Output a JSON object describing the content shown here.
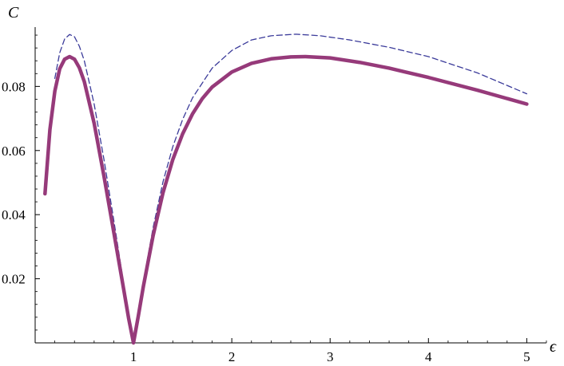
{
  "chart_data": {
    "type": "line",
    "title": "",
    "xlabel": "ϵ",
    "ylabel": "C",
    "xlim": [
      0,
      5.2
    ],
    "ylim": [
      0,
      0.0985
    ],
    "grid": false,
    "legend": "none",
    "x_ticks": [
      {
        "value": 1,
        "label": "1"
      },
      {
        "value": 2,
        "label": "2"
      },
      {
        "value": 3,
        "label": "3"
      },
      {
        "value": 4,
        "label": "4"
      },
      {
        "value": 5,
        "label": "5"
      }
    ],
    "y_ticks": [
      {
        "value": 0.02,
        "label": "0.02"
      },
      {
        "value": 0.04,
        "label": "0.04"
      },
      {
        "value": 0.06,
        "label": "0.06"
      },
      {
        "value": 0.08,
        "label": "0.08"
      }
    ],
    "series": [
      {
        "style": "solid",
        "color": "#963a7a",
        "x": [
          0.1,
          0.15,
          0.2,
          0.25,
          0.3,
          0.35,
          0.4,
          0.45,
          0.5,
          0.6,
          0.7,
          0.8,
          0.9,
          0.95,
          1.0,
          1.05,
          1.1,
          1.2,
          1.3,
          1.4,
          1.5,
          1.6,
          1.7,
          1.8,
          2.0,
          2.2,
          2.4,
          2.6,
          2.75,
          3.0,
          3.3,
          3.6,
          4.0,
          4.5,
          5.0
        ],
        "y": [
          0.0465,
          0.0665,
          0.0785,
          0.0855,
          0.0885,
          0.0893,
          0.0885,
          0.0858,
          0.0815,
          0.0685,
          0.052,
          0.0345,
          0.0168,
          0.0078,
          0.0,
          0.0085,
          0.0175,
          0.0335,
          0.0468,
          0.0572,
          0.0652,
          0.0714,
          0.0762,
          0.0798,
          0.0845,
          0.0872,
          0.0886,
          0.0892,
          0.0893,
          0.0889,
          0.0875,
          0.0857,
          0.0828,
          0.0788,
          0.0745
        ]
      },
      {
        "style": "dashed",
        "color": "#3b3b9a",
        "x": [
          0.2,
          0.25,
          0.3,
          0.35,
          0.4,
          0.45,
          0.5,
          0.6,
          0.7,
          0.8,
          0.9,
          0.95,
          1.0,
          1.05,
          1.1,
          1.2,
          1.3,
          1.4,
          1.5,
          1.6,
          1.8,
          2.0,
          2.2,
          2.4,
          2.65,
          2.9,
          3.2,
          3.6,
          4.0,
          4.5,
          5.0
        ],
        "y": [
          0.0825,
          0.0905,
          0.0948,
          0.0962,
          0.0955,
          0.0925,
          0.088,
          0.0745,
          0.0572,
          0.0382,
          0.0185,
          0.0085,
          0.0,
          0.0092,
          0.019,
          0.036,
          0.0502,
          0.0612,
          0.0697,
          0.0764,
          0.0857,
          0.0912,
          0.0945,
          0.0958,
          0.0963,
          0.0958,
          0.0945,
          0.0922,
          0.0893,
          0.0842,
          0.0777
        ]
      }
    ]
  }
}
